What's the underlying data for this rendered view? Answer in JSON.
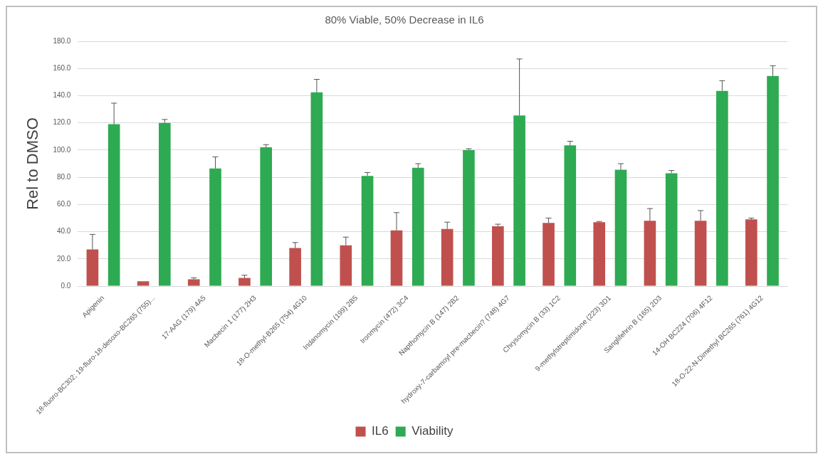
{
  "chart_data": {
    "type": "bar",
    "title": "80% Viable, 50% Decrease in IL6",
    "ylabel": "Rel to DMSO",
    "categories": [
      "Apigenin",
      "18-fluoro-BC302; 19-fluro-18-desoxo-BC265 (755)...",
      "17-AAG (179) 4A5",
      "Macbecin 1 (177) 2H3",
      "18-O-methyl-B265 (754) 4G10",
      "Indanomycin (199) 2B5",
      "Ironmycin (472) 3C4",
      "Napthomycin B (147) 2B2",
      "hydroxy-7-carbamoyl pre-macbecin? (748) 4G7",
      "Chrysomycin B (33) 1C2",
      "9-methylstreptimidone (223) 3D1",
      "Sanglifehrin B (165) 2D3",
      "14-OH BC224 (706) 4F12",
      "18-O-22-N-Dimethyl BC265 (761) 4G12"
    ],
    "series": [
      {
        "name": "IL6",
        "color": "#c0504d",
        "values": [
          27,
          3.5,
          5,
          6,
          28,
          30,
          41,
          42,
          44,
          46.5,
          47,
          48,
          48,
          49
        ],
        "errors": [
          [
            27,
            38
          ],
          null,
          [
            5,
            6
          ],
          [
            6,
            8
          ],
          [
            28,
            32
          ],
          [
            30,
            36
          ],
          [
            41,
            54
          ],
          [
            42,
            47
          ],
          [
            44,
            45.5
          ],
          [
            46.5,
            50
          ],
          [
            47,
            47.5
          ],
          [
            48,
            57
          ],
          [
            48,
            55.5
          ],
          [
            49,
            50
          ]
        ]
      },
      {
        "name": "Viability",
        "color": "#2eaa52",
        "values": [
          119,
          120,
          86.5,
          102,
          142.5,
          81,
          87,
          100,
          125.5,
          103.5,
          85.5,
          83,
          143.5,
          154.5
        ],
        "errors": [
          [
            119,
            134.5
          ],
          [
            120,
            122.5
          ],
          [
            86.5,
            95
          ],
          [
            102,
            104
          ],
          [
            142.5,
            152
          ],
          [
            81,
            83.5
          ],
          [
            87,
            90
          ],
          [
            100,
            101
          ],
          [
            125.5,
            167
          ],
          [
            103.5,
            106.5
          ],
          [
            85.5,
            90
          ],
          [
            83,
            85
          ],
          [
            143.5,
            151
          ],
          [
            154.5,
            162
          ]
        ]
      }
    ],
    "ylim": [
      0,
      180
    ],
    "yticks": [
      {
        "value": 0,
        "label": "0.0"
      },
      {
        "value": 20,
        "label": "20.0"
      },
      {
        "value": 40,
        "label": "40.0"
      },
      {
        "value": 60,
        "label": "60.0"
      },
      {
        "value": 80,
        "label": "80.0"
      },
      {
        "value": 100,
        "label": "100.0"
      },
      {
        "value": 120,
        "label": "120.0"
      },
      {
        "value": 140,
        "label": "140.0"
      },
      {
        "value": 160,
        "label": "160.0"
      },
      {
        "value": 180,
        "label": "180.0"
      }
    ],
    "grid": "y",
    "legend": "bottom"
  }
}
